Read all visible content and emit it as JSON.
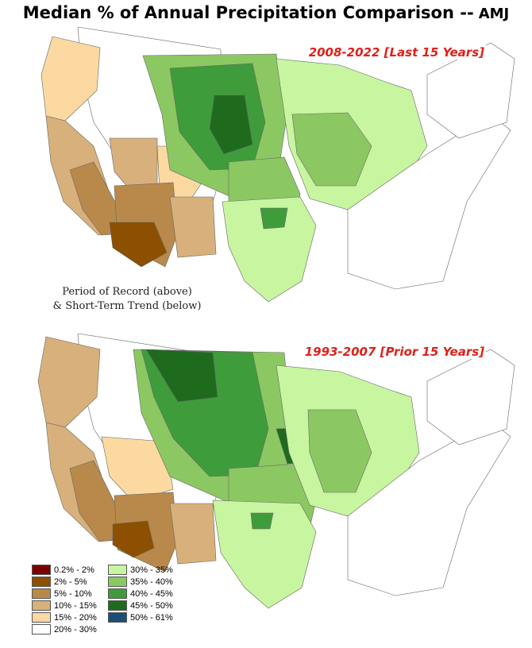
{
  "title": "Median % of Annual Precipitation Comparison --",
  "title_tag": "AMJ",
  "maps": [
    {
      "period": "2008-2022 [Last 15 Years]"
    },
    {
      "period": "1993-2007 [Prior 15 Years]"
    }
  ],
  "note_line1": "Period of Record (above)",
  "note_line2": "& Short-Term Trend (below)",
  "legend": [
    {
      "label": "0.2% - 2%",
      "color": "#7b0000"
    },
    {
      "label": "2% - 5%",
      "color": "#8c5000"
    },
    {
      "label": "5% - 10%",
      "color": "#b8894a"
    },
    {
      "label": "10% - 15%",
      "color": "#d8b07b"
    },
    {
      "label": "15% - 20%",
      "color": "#fbd9a0"
    },
    {
      "label": "20% - 30%",
      "color": "#ffffff"
    },
    {
      "label": "30% - 35%",
      "color": "#c8f5a0"
    },
    {
      "label": "35% - 40%",
      "color": "#8cc862"
    },
    {
      "label": "40% - 45%",
      "color": "#3f9c3a"
    },
    {
      "label": "45% - 50%",
      "color": "#1e6b1e"
    },
    {
      "label": "50% - 61%",
      "color": "#1a4f78"
    }
  ]
}
